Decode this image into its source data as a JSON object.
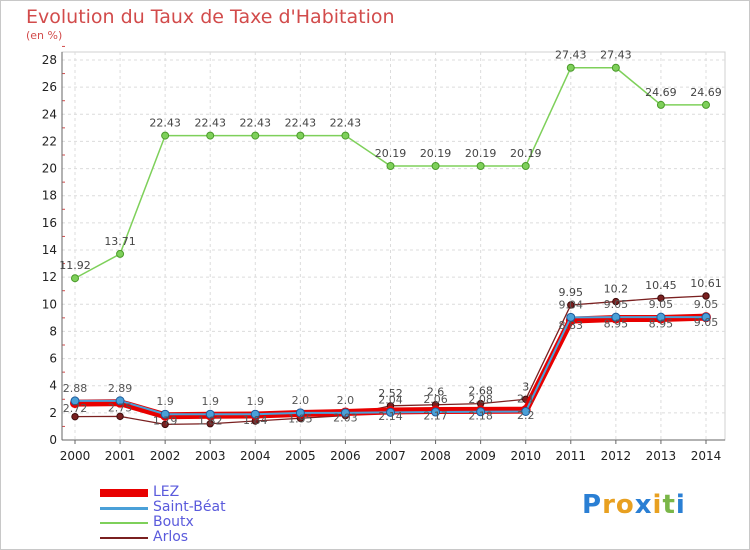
{
  "header": {
    "title": "Evolution du Taux de Taxe d'Habitation",
    "subtitle": "(en %)"
  },
  "logo": {
    "text": "Proxiti",
    "letters": [
      "P",
      "r",
      "o",
      "x",
      "i",
      "t",
      "i"
    ],
    "colors": [
      "#2a7fd4",
      "#e8a020",
      "#e8a020",
      "#2a7fd4",
      "#e8a020",
      "#7ab648",
      "#2a7fd4"
    ]
  },
  "chart_data": {
    "type": "line",
    "title": "Evolution du Taux de Taxe d'Habitation",
    "ylabel": "(en %)",
    "xlabel": "",
    "x": [
      "2000",
      "2001",
      "2002",
      "2003",
      "2004",
      "2005",
      "2006",
      "2007",
      "2008",
      "2009",
      "2010",
      "2011",
      "2012",
      "2013",
      "2014"
    ],
    "ylim": [
      0,
      28
    ],
    "yticks": [
      0,
      2,
      4,
      6,
      8,
      10,
      12,
      14,
      16,
      18,
      20,
      22,
      24,
      26,
      28
    ],
    "grid": true,
    "legend_position": "bottom-left",
    "series": [
      {
        "name": "LEZ",
        "color": "#e80000",
        "values": [
          2.72,
          2.75,
          1.79,
          1.82,
          1.84,
          1.95,
          2.03,
          2.14,
          2.17,
          2.18,
          2.2,
          8.83,
          8.95,
          8.95,
          9.05
        ],
        "labels": [
          "2.72",
          "2.75",
          "1.79",
          "1.82",
          "1.84",
          "1.95",
          "2.03",
          "2.14",
          "2.17",
          "2.18",
          "2.2",
          "8.83",
          "8.95",
          "8.95",
          "9.05"
        ]
      },
      {
        "name": "Saint-Béat",
        "color": "#4aa0d8",
        "values": [
          2.88,
          2.89,
          1.9,
          1.9,
          1.9,
          2.0,
          2.0,
          2.04,
          2.06,
          2.08,
          2.1,
          9.04,
          9.05,
          9.05,
          9.05
        ],
        "labels": [
          "2.88",
          "2.89",
          "1.9",
          "1.9",
          "1.9",
          "2.0",
          "2.0",
          "2.04",
          "2.06",
          "2.08",
          "2.1",
          "9.04",
          "9.05",
          "9.05",
          "9.05"
        ]
      },
      {
        "name": "Boutx",
        "color": "#7ed05a",
        "values": [
          11.92,
          13.71,
          22.43,
          22.43,
          22.43,
          22.43,
          22.43,
          20.19,
          20.19,
          20.19,
          20.19,
          27.43,
          27.43,
          24.69,
          24.69
        ],
        "labels": [
          "11.92",
          "13.71",
          "22.43",
          "22.43",
          "22.43",
          "22.43",
          "22.43",
          "20.19",
          "20.19",
          "20.19",
          "20.19",
          "27.43",
          "27.43",
          "24.69",
          "24.69"
        ]
      },
      {
        "name": "Arlos",
        "color": "#7a2020",
        "values": [
          1.72,
          1.74,
          1.15,
          1.2,
          1.4,
          1.6,
          1.8,
          2.52,
          2.6,
          2.68,
          3.0,
          9.95,
          10.2,
          10.45,
          10.61
        ],
        "labels": [
          "",
          "",
          "",
          "",
          "",
          "",
          "",
          "2.52",
          "2.6",
          "2.68",
          "3",
          "9.95",
          "10.2",
          "10.45",
          "10.61"
        ]
      }
    ]
  }
}
